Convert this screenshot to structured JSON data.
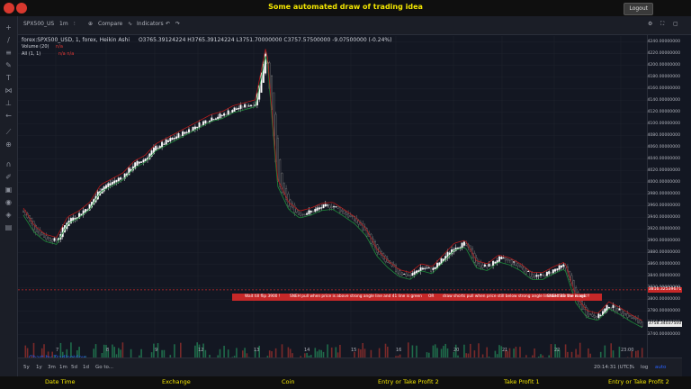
{
  "app": {
    "title": "Some automated draw of trading idea",
    "logout_label": "Logout"
  },
  "toolbar": {
    "symbol": "SPX500_US",
    "interval": "1m",
    "compare_label": "Compare",
    "indicators_label": "Indicators"
  },
  "legend": {
    "main": "forex:SPX500_USD, 1, forex, Heikin Ashi",
    "ohlc": "O3765.39124224  H3765.39124224  L3751.70000000  C3757.57500000  -9.07500000 (-0.24%)",
    "volume": "Volume (20)",
    "volume_val": "n/a",
    "all": "All (1, 1)",
    "all_val": "n/a  n/a"
  },
  "price_axis": [
    "4240.00000000",
    "4220.00000000",
    "4200.00000000",
    "4180.00000000",
    "4160.00000000",
    "4140.00000000",
    "4120.00000000",
    "4100.00000000",
    "4080.00000000",
    "4060.00000000",
    "4040.00000000",
    "4020.00000000",
    "4000.00000000",
    "3980.00000000",
    "3960.00000000",
    "3940.00000000",
    "3920.00000000",
    "3900.00000000",
    "3880.00000000",
    "3860.00000000",
    "3840.00000000",
    "3820.00000000",
    "3800.00000000",
    "3780.00000000",
    "3760.00000000",
    "3740.00000000"
  ],
  "price_tags": {
    "line": "3816.32539671",
    "current": "3758.34037500"
  },
  "banner": {
    "t1": "Wait till flip 3900 !",
    "t2": "SNEH pull when  price is above strong angle line and 41 line is green",
    "t3": "OR",
    "t4": "draw shorts pull when price still below strong angle line and 41 line is red",
    "t5": "SNEH See the magic!!"
  },
  "time_axis": [
    "7",
    "8",
    "9",
    "12",
    "13",
    "14",
    "15",
    "16",
    "20",
    "21",
    "22",
    "23:00"
  ],
  "bottom": {
    "ranges": [
      "5y",
      "1y",
      "3m",
      "1m",
      "5d",
      "1d",
      "Go to..."
    ],
    "clock": "20:14:31 (UTC)",
    "pct": "%",
    "log": "log",
    "auto": "auto"
  },
  "watermark": "Chart by TradingView",
  "footer": [
    "Date Time",
    "Exchange",
    "Coin",
    "Entry or Take Profit 2",
    "Take Profit 1",
    "Entry or Take Profit 2"
  ],
  "chart_data": {
    "type": "candlestick",
    "style": "Heikin Ashi",
    "symbol": "forex:SPX500_USD",
    "ylim": [
      3730,
      4250
    ],
    "x_labels": [
      "7",
      "8",
      "9",
      "12",
      "13",
      "14",
      "15",
      "16",
      "20",
      "21",
      "22",
      "23:00"
    ],
    "close_path": [
      3950,
      3920,
      3905,
      3900,
      3935,
      3945,
      3960,
      3990,
      4000,
      4010,
      4030,
      4040,
      4060,
      4070,
      4080,
      4090,
      4100,
      4110,
      4115,
      4125,
      4130,
      4135,
      4230,
      4000,
      3960,
      3945,
      3950,
      3958,
      3960,
      3948,
      3935,
      3915,
      3880,
      3860,
      3845,
      3840,
      3855,
      3850,
      3870,
      3890,
      3895,
      3860,
      3855,
      3870,
      3865,
      3855,
      3840,
      3840,
      3850,
      3858,
      3800,
      3775,
      3770,
      3790,
      3780,
      3768,
      3758
    ],
    "resistance_line": 3816.32539671,
    "colors": {
      "up": "#26a69a",
      "down": "#ef5350",
      "ma_green": "#1e8c3a",
      "ma_red": "#b71c1c",
      "banner": "#c62828"
    }
  }
}
